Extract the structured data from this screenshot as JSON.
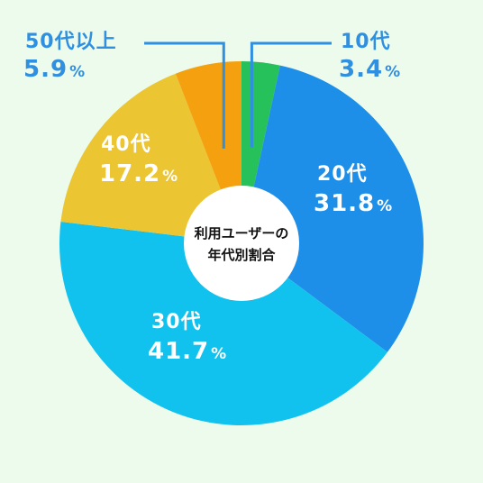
{
  "background_color": "#ecfbec",
  "chart_data": {
    "type": "pie",
    "donut": true,
    "center_title": "利用ユーザーの\n年代別割合",
    "center_title_lines": [
      "利用ユーザーの",
      "年代別割合"
    ],
    "unit": "%",
    "slices": [
      {
        "label": "10代",
        "value": 3.4,
        "value_text": "3.4",
        "color": "#27c15c"
      },
      {
        "label": "20代",
        "value": 31.8,
        "value_text": "31.8",
        "color": "#1e8fe8"
      },
      {
        "label": "30代",
        "value": 41.7,
        "value_text": "41.7",
        "color": "#12c2ee"
      },
      {
        "label": "40代",
        "value": 17.2,
        "value_text": "17.2",
        "color": "#ecc533"
      },
      {
        "label": "50代以上",
        "value": 5.9,
        "value_text": "5.9",
        "color": "#f5a10f"
      }
    ],
    "label_text_color_outside": "#2f8fe0",
    "label_text_color_inside": "#ffffff",
    "callout_line_color": "#2f8fe0"
  }
}
